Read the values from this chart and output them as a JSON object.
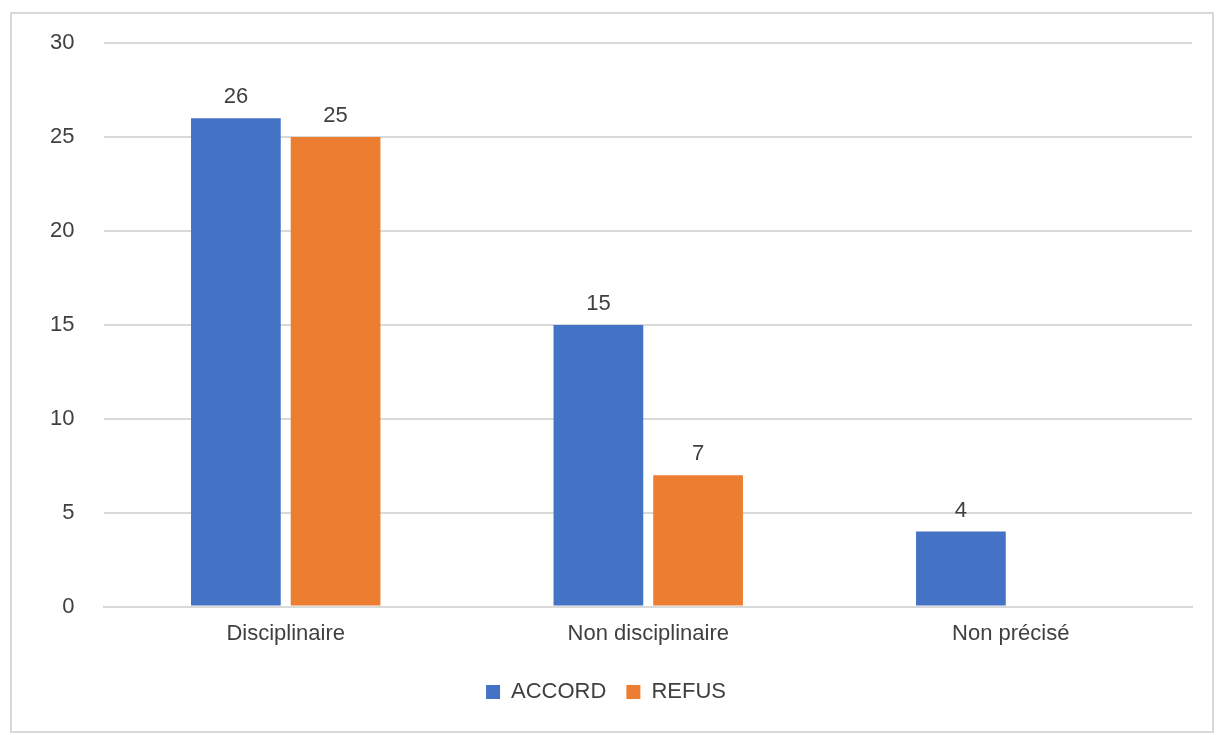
{
  "chart_data": {
    "type": "bar",
    "categories": [
      "Disciplinaire",
      "Non disciplinaire",
      "Non précisé"
    ],
    "series": [
      {
        "name": "ACCORD",
        "color": "#4472c4",
        "values": [
          26,
          15,
          4
        ]
      },
      {
        "name": "REFUS",
        "color": "#ed7d31",
        "values": [
          25,
          7,
          null
        ]
      }
    ],
    "ylim": [
      0,
      30
    ],
    "yticks": [
      0,
      5,
      10,
      15,
      20,
      25,
      30
    ],
    "grid": "y",
    "legend": "bottom",
    "data_labels": true
  }
}
